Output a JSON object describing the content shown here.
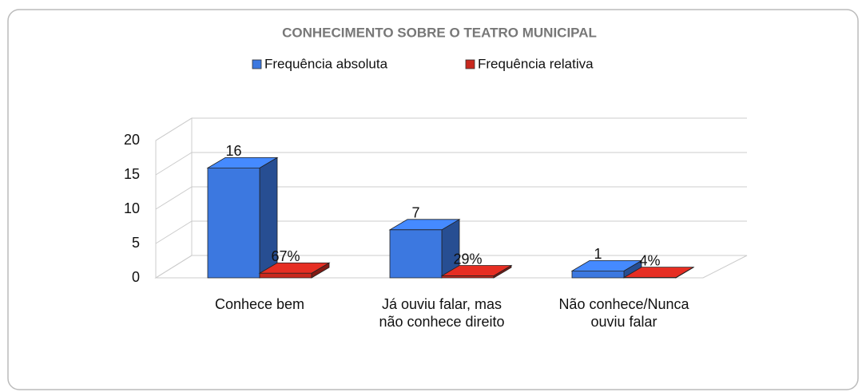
{
  "chart_data": {
    "type": "bar3d",
    "title": "CONHECIMENTO SOBRE O TEATRO MUNICIPAL",
    "categories": [
      "Conhece bem",
      "Já ouviu falar, mas não conhece direito",
      "Não conhece/Nunca ouviu falar"
    ],
    "series": [
      {
        "name": "Frequência absoluta",
        "color": "#3c78e0",
        "values": [
          16,
          7,
          1
        ]
      },
      {
        "name": "Frequência relativa",
        "color": "#c8281e",
        "values": [
          0.67,
          0.29,
          0.04
        ],
        "value_labels": [
          "67%",
          "29%",
          "4%"
        ]
      }
    ],
    "ylim": [
      0,
      20
    ],
    "yticks": [
      0,
      5,
      10,
      15,
      20
    ],
    "grid": true,
    "legend": "top"
  }
}
